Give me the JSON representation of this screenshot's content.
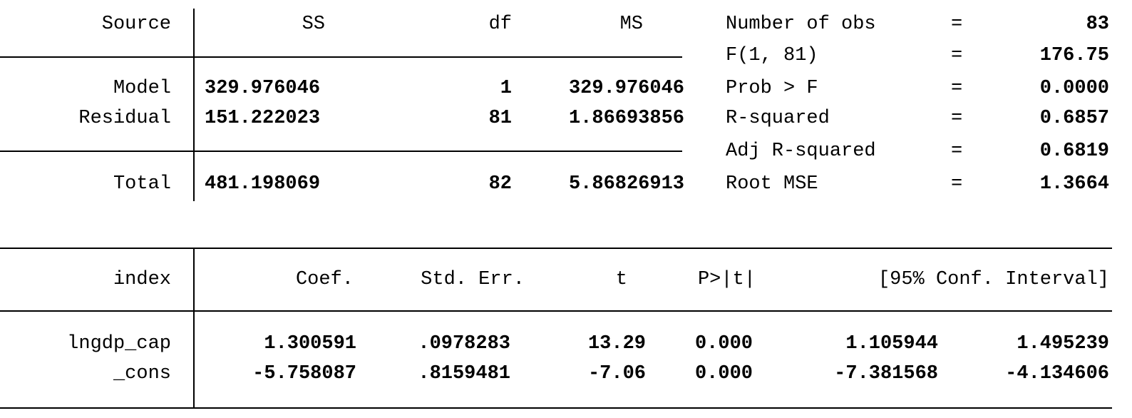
{
  "anova": {
    "headers": {
      "source": "Source",
      "ss": "SS",
      "df": "df",
      "ms": "MS"
    },
    "rows": [
      {
        "source": "Model",
        "ss": "329.976046",
        "df": "1",
        "ms": "329.976046"
      },
      {
        "source": "Residual",
        "ss": "151.222023",
        "df": "81",
        "ms": "1.86693856"
      },
      {
        "source": "Total",
        "ss": "481.198069",
        "df": "82",
        "ms": "5.86826913"
      }
    ]
  },
  "stats": [
    {
      "label": "Number of obs",
      "eq": "=",
      "value": "83"
    },
    {
      "label": "F(1, 81)",
      "eq": "=",
      "value": "176.75"
    },
    {
      "label": "Prob > F",
      "eq": "=",
      "value": "0.0000"
    },
    {
      "label": "R-squared",
      "eq": "=",
      "value": "0.6857"
    },
    {
      "label": "Adj R-squared",
      "eq": "=",
      "value": "0.6819"
    },
    {
      "label": "Root MSE",
      "eq": "=",
      "value": "1.3664"
    }
  ],
  "coef": {
    "headers": {
      "var": "index",
      "coef": "Coef.",
      "se": "Std. Err.",
      "t": "t",
      "p": "P>|t|",
      "ci": "[95% Conf. Interval]"
    },
    "rows": [
      {
        "var": "lngdp_cap",
        "coef": "1.300591",
        "se": ".0978283",
        "t": "13.29",
        "p": "0.000",
        "lo": "1.105944",
        "hi": "1.495239"
      },
      {
        "var": "_cons",
        "coef": "-5.758087",
        "se": ".8159481",
        "t": "-7.06",
        "p": "0.000",
        "lo": "-7.381568",
        "hi": "-4.134606"
      }
    ]
  }
}
